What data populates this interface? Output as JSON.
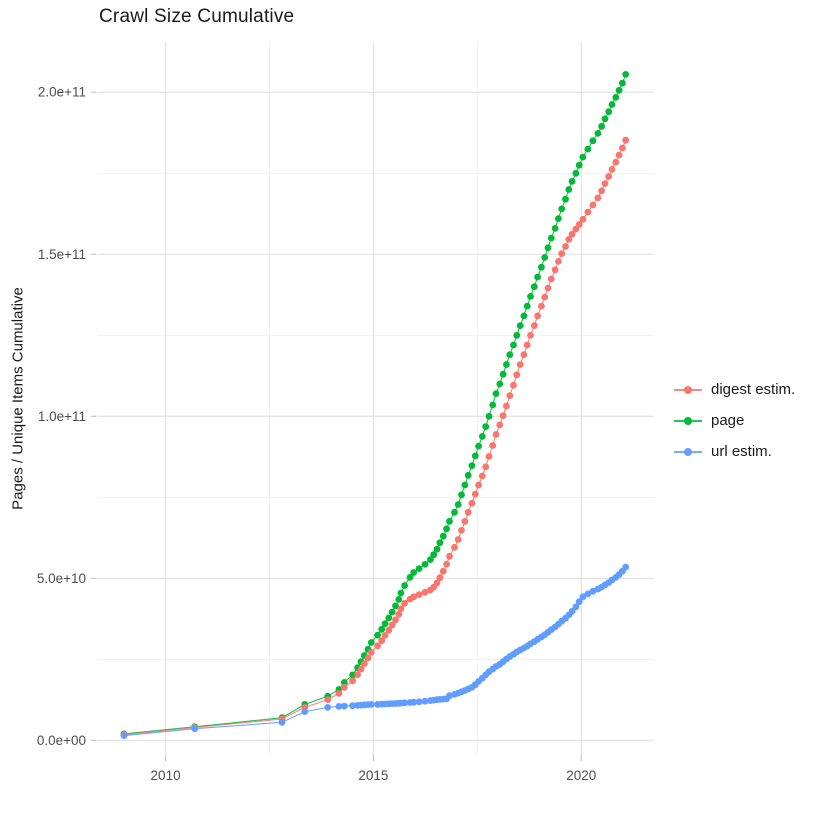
{
  "page": {
    "background": "#ffffff"
  },
  "chart_data": {
    "type": "line",
    "title": "Crawl Size Cumulative",
    "xlabel": "",
    "ylabel": "Pages / Unique Items Cumulative",
    "legend_position": "right-center",
    "grid": "major and minor, light grey on white",
    "y_unit_multiplier": 1000000000.0,
    "xlim": [
      2008.35,
      2021.75
    ],
    "ylim": [
      -4.5,
      215.5
    ],
    "x_ticks": {
      "values": [
        2010,
        2015,
        2020
      ],
      "labels": [
        "2010",
        "2015",
        "2020"
      ]
    },
    "x_minor_ticks": [
      2012.5,
      2017.5
    ],
    "y_ticks": {
      "values": [
        0,
        50,
        100,
        150,
        200
      ],
      "labels": [
        "0.0e+00",
        "5.0e+10",
        "1.0e+11",
        "1.5e+11",
        "2.0e+11"
      ]
    },
    "y_minor_ticks": [
      25,
      75,
      125,
      175
    ],
    "x": [
      2009.0,
      2010.7,
      2012.8,
      2013.35,
      2013.9,
      2014.17,
      2014.3,
      2014.5,
      2014.62,
      2014.7,
      2014.78,
      2014.87,
      2014.95,
      2015.1,
      2015.2,
      2015.28,
      2015.37,
      2015.45,
      2015.53,
      2015.61,
      2015.66,
      2015.75,
      2015.88,
      2015.97,
      2016.1,
      2016.24,
      2016.37,
      2016.45,
      2016.53,
      2016.6,
      2016.68,
      2016.76,
      2016.83,
      2016.95,
      2017.04,
      2017.12,
      2017.2,
      2017.28,
      2017.37,
      2017.45,
      2017.53,
      2017.62,
      2017.7,
      2017.78,
      2017.87,
      2017.95,
      2018.04,
      2018.12,
      2018.2,
      2018.28,
      2018.37,
      2018.45,
      2018.53,
      2018.62,
      2018.7,
      2018.78,
      2018.87,
      2018.95,
      2019.04,
      2019.12,
      2019.2,
      2019.28,
      2019.37,
      2019.45,
      2019.53,
      2019.62,
      2019.7,
      2019.78,
      2019.87,
      2019.95,
      2020.04,
      2020.16,
      2020.28,
      2020.4,
      2020.49,
      2020.57,
      2020.66,
      2020.74,
      2020.83,
      2020.91,
      2020.99,
      2021.07
    ],
    "series": [
      {
        "name": "digest estim.",
        "color": "#F8766D",
        "values": [
          1.8,
          4.0,
          6.6,
          10.2,
          12.6,
          14.5,
          16.4,
          18.4,
          20.3,
          22,
          23.7,
          25.4,
          27.2,
          29.2,
          30.8,
          32.4,
          34,
          35.6,
          37.2,
          38.9,
          40.6,
          42.3,
          43.6,
          44.3,
          45,
          45.7,
          46.4,
          47.3,
          48.6,
          50.2,
          52.2,
          54.4,
          56.8,
          59.6,
          62,
          64.8,
          67.6,
          70.4,
          73.2,
          76,
          78.8,
          81.6,
          84.4,
          87.6,
          91,
          94.4,
          97.4,
          100.2,
          103.2,
          106.4,
          109.6,
          112.8,
          116,
          119,
          122,
          125,
          128,
          131,
          134,
          136.8,
          139.6,
          142.4,
          145.2,
          147.8,
          150.2,
          152.4,
          154.6,
          156.2,
          157.8,
          159.2,
          160.8,
          163,
          165.2,
          167.4,
          169.6,
          171.8,
          174,
          176.2,
          178.4,
          180.6,
          182.8,
          185.2
        ]
      },
      {
        "name": "page",
        "color": "#00BA38",
        "values": [
          2,
          4.2,
          7,
          11.1,
          13.6,
          15.7,
          17.9,
          20.2,
          22.4,
          24.3,
          26.2,
          28.1,
          30.2,
          32.5,
          34.3,
          36,
          37.8,
          39.6,
          41.5,
          43.5,
          45.5,
          47.8,
          50.3,
          51.8,
          53,
          54.3,
          55.8,
          57.3,
          59,
          61,
          63,
          65.3,
          67.6,
          70.4,
          72.8,
          75.8,
          78.8,
          81.8,
          84.8,
          87.8,
          90.8,
          93.8,
          96.8,
          100,
          103.5,
          107,
          110,
          113,
          116,
          119,
          122,
          125,
          128,
          131,
          134,
          137,
          140,
          143,
          146,
          149,
          152,
          155,
          158,
          161,
          164,
          167,
          170,
          172.5,
          175,
          177.5,
          180,
          182.5,
          185,
          187.3,
          189.5,
          191.8,
          194,
          196.2,
          198.4,
          200.6,
          202.8,
          205.5
        ]
      },
      {
        "name": "url estim.",
        "color": "#619CFF",
        "values": [
          1.5,
          3.6,
          5.6,
          8.9,
          10.2,
          10.5,
          10.6,
          10.7,
          10.8,
          10.9,
          11.0,
          11.05,
          11.1,
          11.15,
          11.2,
          11.25,
          11.3,
          11.35,
          11.4,
          11.45,
          11.5,
          11.6,
          11.7,
          11.8,
          11.9,
          12.1,
          12.3,
          12.45,
          12.55,
          12.65,
          12.75,
          12.85,
          13.8,
          14.2,
          14.6,
          15,
          15.4,
          15.9,
          16.4,
          17.2,
          18.2,
          19.2,
          20.2,
          21.2,
          22,
          22.8,
          23.5,
          24.3,
          25.1,
          25.9,
          26.6,
          27.3,
          27.9,
          28.5,
          29.1,
          29.8,
          30.5,
          31.2,
          31.9,
          32.6,
          33.4,
          34.2,
          35,
          35.9,
          36.8,
          37.7,
          38.7,
          39.8,
          41.2,
          42.8,
          44.3,
          45.2,
          46,
          46.7,
          47.3,
          48,
          48.7,
          49.5,
          50.3,
          51.2,
          52.2,
          53.5
        ]
      }
    ],
    "colors": {
      "grid_major": "#e4e4e4",
      "grid_minor": "#f1f1f1",
      "axis_tick": "#c6c6c6",
      "tick_label": "#4d4d4d",
      "title_text": "#1a1a1a"
    }
  }
}
